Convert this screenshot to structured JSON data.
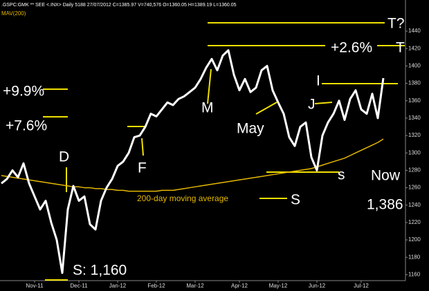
{
  "chart_data": {
    "type": "line",
    "subtitle": ".GSPC:GMK ** SEE <.INX> Daily 5188 27/07/2012 C=1385.97 V=740,576 O=1360.05 H=1389.19 L=1360.05",
    "categories": [
      null,
      null,
      null,
      null,
      null,
      null,
      "Nov-11",
      null,
      null,
      null,
      null,
      null,
      null,
      null,
      "Dec-11",
      null,
      null,
      null,
      null,
      null,
      null,
      "Jan-12",
      null,
      null,
      null,
      null,
      null,
      null,
      "Feb-12",
      null,
      null,
      null,
      null,
      null,
      null,
      "Mar-12",
      null,
      null,
      null,
      null,
      null,
      null,
      null,
      "Apr-12",
      null,
      null,
      null,
      null,
      null,
      null,
      "May-12",
      null,
      null,
      null,
      null,
      null,
      null,
      "Jun-12",
      null,
      null,
      null,
      null,
      null,
      null,
      null,
      "Jul-12",
      null,
      null,
      null,
      null
    ],
    "series": [
      {
        "color": "#ffffff",
        "values": [
          1265,
          1270,
          1280,
          1272,
          1288,
          1265,
          1250,
          1235,
          1245,
          1220,
          1200,
          1162,
          1235,
          1262,
          1245,
          1250,
          1218,
          1212,
          1245,
          1260,
          1270,
          1285,
          1290,
          1300,
          1318,
          1320,
          1330,
          1345,
          1342,
          1350,
          1358,
          1355,
          1362,
          1365,
          1370,
          1375,
          1385,
          1398,
          1408,
          1395,
          1412,
          1418,
          1390,
          1372,
          1385,
          1370,
          1375,
          1395,
          1400,
          1372,
          1358,
          1345,
          1318,
          1308,
          1330,
          1335,
          1295,
          1280,
          1320,
          1335,
          1345,
          1360,
          1338,
          1362,
          1372,
          1350,
          1345,
          1368,
          1340,
          1386
        ]
      },
      {
        "name": "MAV(200)",
        "color": "#e6b800",
        "values": [
          1274,
          1273,
          1272,
          1271,
          1270,
          1269,
          1268,
          1267,
          1266,
          1265,
          1264,
          1263,
          1262,
          1261,
          1261,
          1260,
          1260,
          1259,
          1259,
          1258,
          1258,
          1257,
          1257,
          1256,
          1256,
          1256,
          1256,
          1256,
          1256,
          1257,
          1257,
          1257,
          1258,
          1259,
          1260,
          1261,
          1262,
          1263,
          1264,
          1265,
          1266,
          1267,
          1268,
          1269,
          1270,
          1271,
          1272,
          1273,
          1274,
          1275,
          1276,
          1277,
          1278,
          1279,
          1280,
          1281,
          1282,
          1284,
          1286,
          1288,
          1290,
          1292,
          1294,
          1297,
          1300,
          1303,
          1306,
          1309,
          1312,
          1316
        ]
      }
    ],
    "ylim": [
      1150,
      1475
    ],
    "yticks": [
      1160,
      1180,
      1200,
      1220,
      1240,
      1260,
      1280,
      1300,
      1320,
      1340,
      1360,
      1380,
      1400,
      1420,
      1440
    ],
    "annotations": [
      "T?",
      "+2.6%",
      "T",
      "I",
      "+9.9%",
      "+7.6%",
      "M",
      "May",
      "J",
      "D",
      "F",
      "s",
      "Now",
      "1,386",
      "S",
      "200-day moving average",
      "S: 1,160"
    ]
  }
}
